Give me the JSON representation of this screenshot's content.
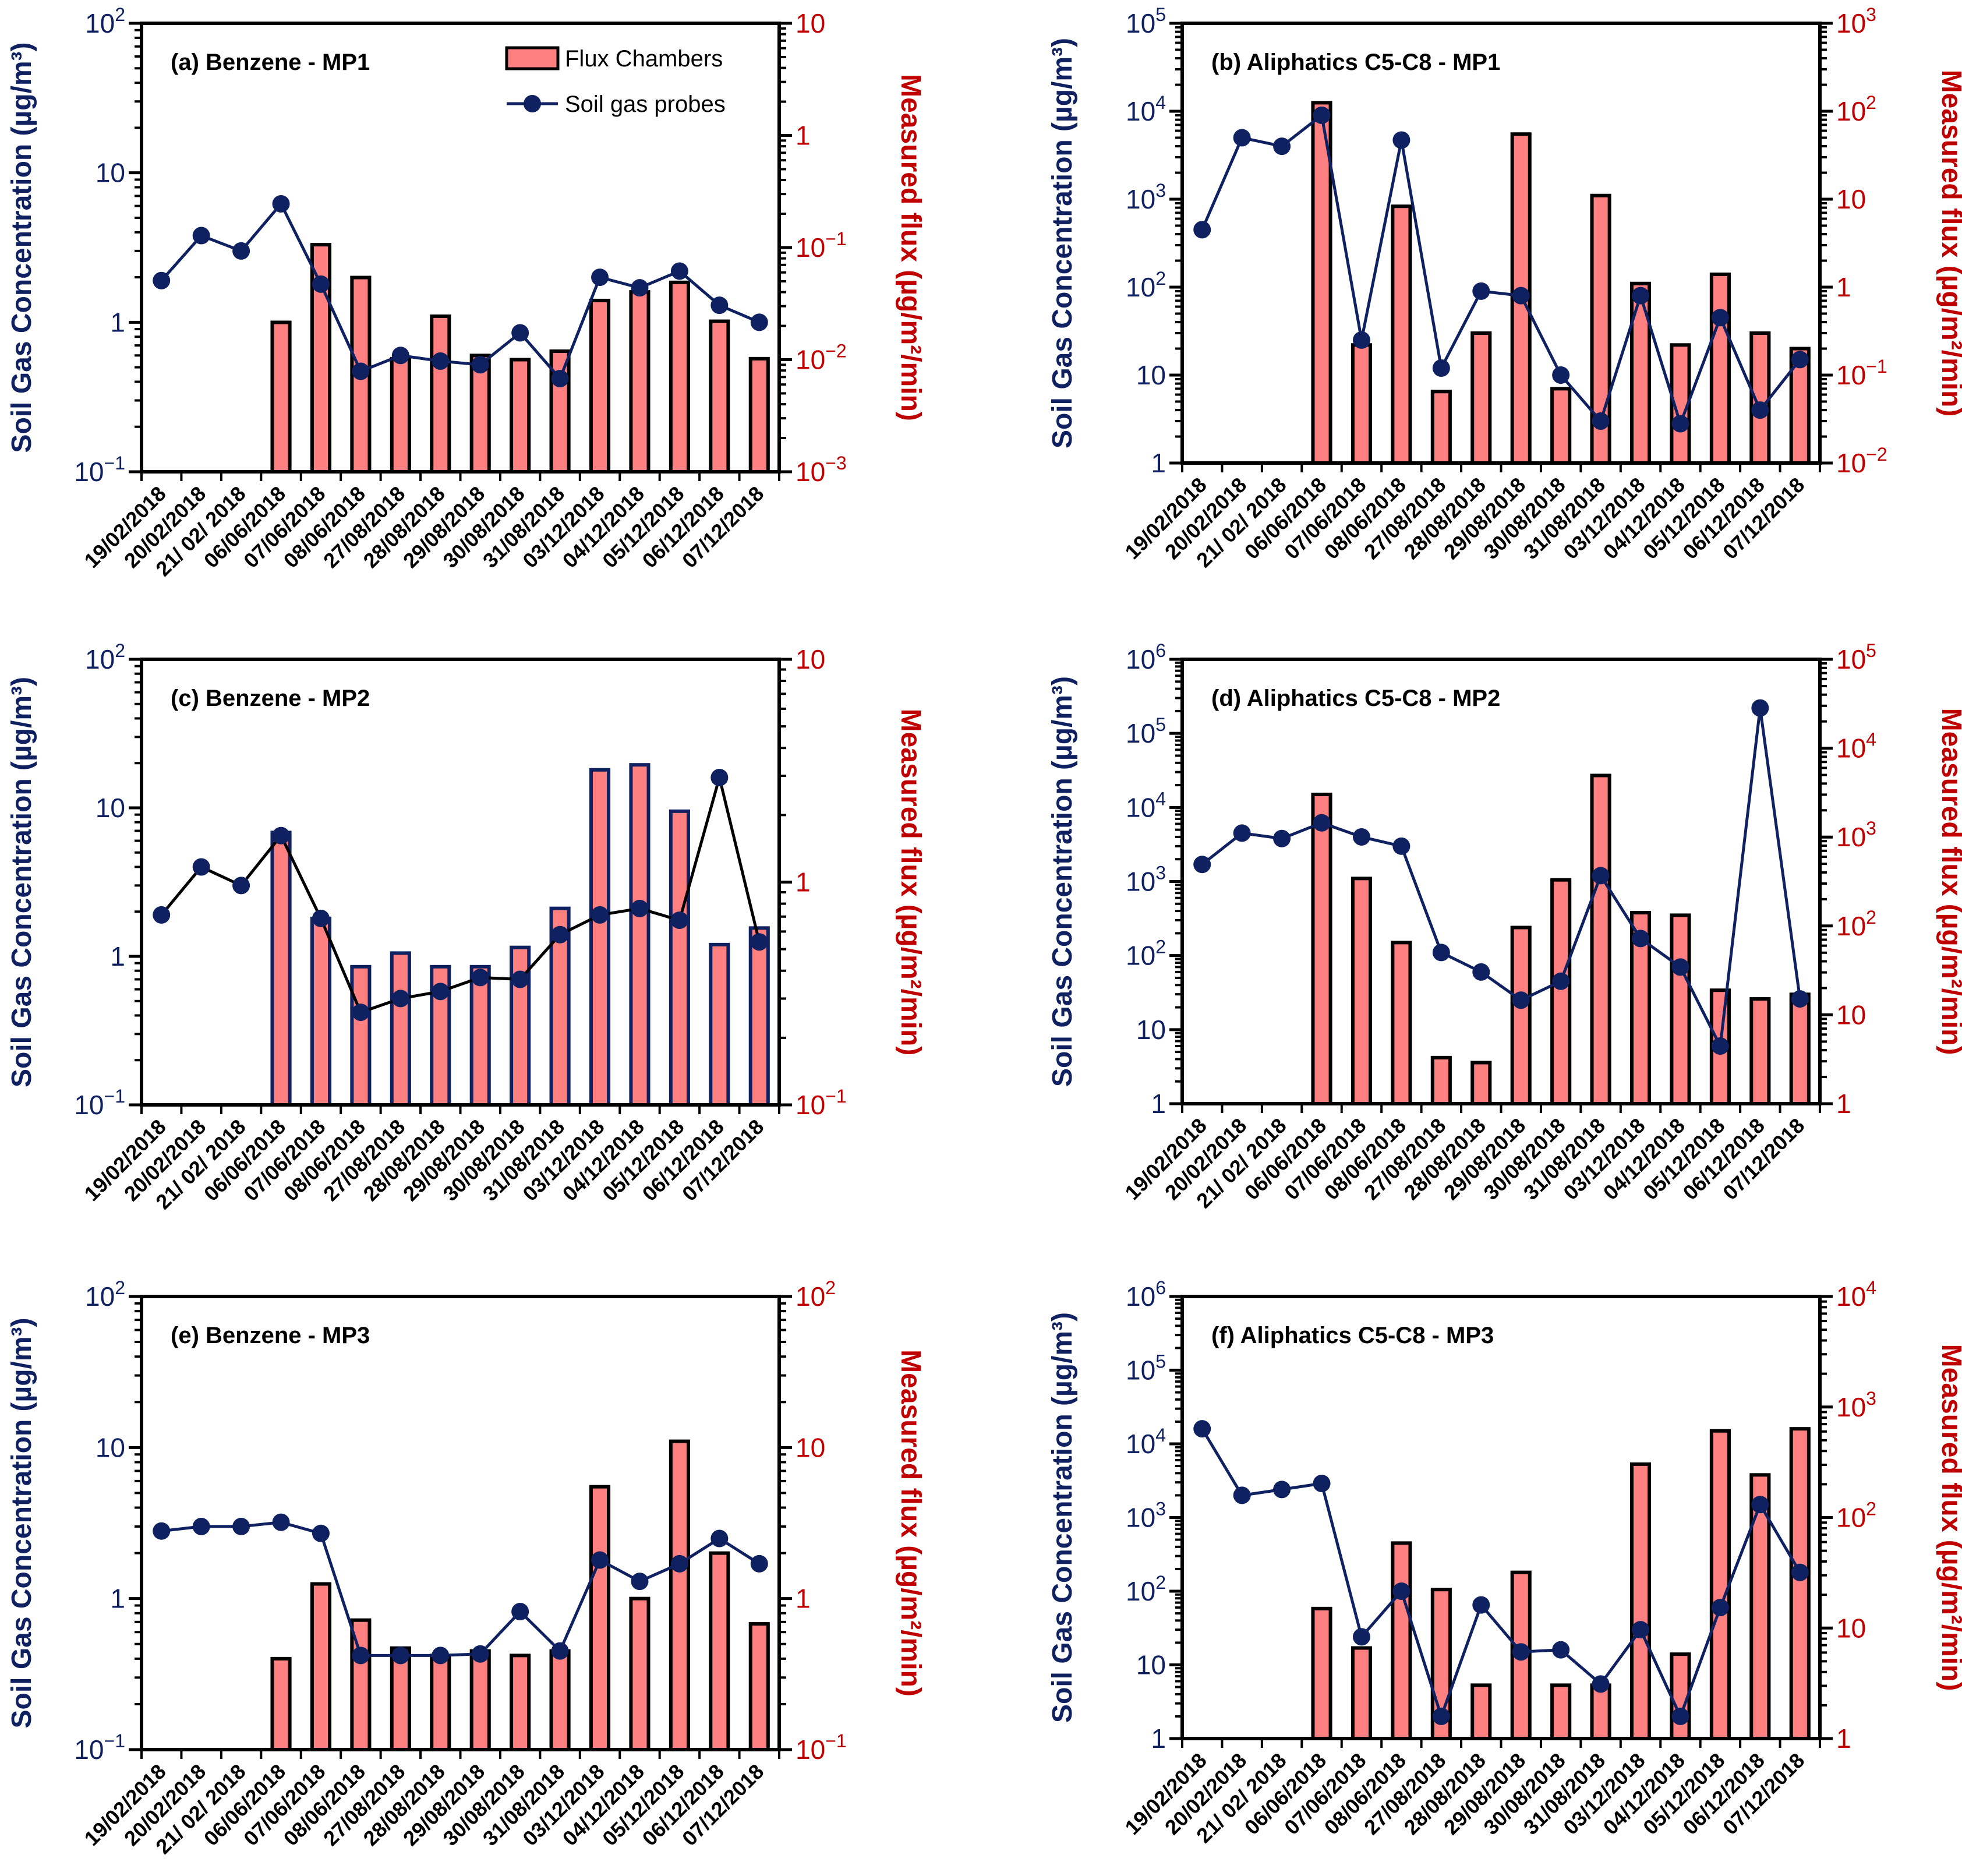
{
  "colors": {
    "navy": "#0f2160",
    "red": "#c00000",
    "bar_fill": "#ff8080",
    "bar_edge": "#000000",
    "line": "#0f2160"
  },
  "legend": {
    "bars": "Flux Chambers",
    "line": "Soil gas probes"
  },
  "chart_data": [
    {
      "type": "bar+line",
      "title": "(a) Benzene - MP1",
      "ylabel": "Soil Gas Concentration (µg/m³)",
      "y2label": "Measured flux (µg/m²/min)",
      "yscale": "log",
      "ylim": [
        0.1,
        100
      ],
      "y2lim": [
        0.001,
        10
      ],
      "yticks": [
        "10^-1",
        "1",
        "10",
        "10^2"
      ],
      "y2ticks": [
        "10^-3",
        "10^-2",
        "10^-1",
        "1",
        "10"
      ],
      "legend": "top-right",
      "categories": [
        "19/02/2018",
        "20/02/2018",
        "21/ 02/ 2018",
        "06/06/2018",
        "07/06/2018",
        "08/06/2018",
        "27/08/2018",
        "28/08/2018",
        "29/08/2018",
        "30/08/2018",
        "31/08/2018",
        "03/12/2018",
        "04/12/2018",
        "05/12/2018",
        "06/12/2018",
        "07/12/2018"
      ],
      "series": [
        {
          "name": "Soil gas probes",
          "axis": "left",
          "kind": "line",
          "values": [
            1.9,
            3.8,
            3.0,
            6.2,
            1.8,
            0.47,
            0.6,
            0.55,
            0.52,
            0.85,
            0.42,
            2.0,
            1.7,
            2.2,
            1.3,
            1.0
          ]
        },
        {
          "name": "Flux Chambers",
          "axis": "right",
          "kind": "bar",
          "values": [
            null,
            null,
            null,
            0.0215,
            0.106,
            0.054,
            0.0102,
            0.0244,
            0.0109,
            0.01,
            0.0119,
            0.0337,
            0.0402,
            0.0489,
            0.022,
            0.0102
          ]
        }
      ]
    },
    {
      "type": "bar+line",
      "title": "(b) Aliphatics C5-C8 - MP1",
      "ylabel": "Soil Gas Concentration (µg/m³)",
      "y2label": "Measured flux (µg/m²/min)",
      "yscale": "log",
      "ylim": [
        1,
        100000
      ],
      "y2lim": [
        0.01,
        1000
      ],
      "yticks": [
        "1",
        "10",
        "10^2",
        "10^3",
        "10^4",
        "10^5"
      ],
      "y2ticks": [
        "10^-2",
        "10^-1",
        "1",
        "10",
        "10^2",
        "10^3"
      ],
      "categories": [
        "19/02/2018",
        "20/02/2018",
        "21/ 02/ 2018",
        "06/06/2018",
        "07/06/2018",
        "08/06/2018",
        "27/08/2018",
        "28/08/2018",
        "29/08/2018",
        "30/08/2018",
        "31/08/2018",
        "03/12/2018",
        "04/12/2018",
        "05/12/2018",
        "06/12/2018",
        "07/12/2018"
      ],
      "series": [
        {
          "name": "Soil gas probes",
          "axis": "left",
          "kind": "line",
          "values": [
            450,
            5000,
            4000,
            9000,
            25,
            4700,
            12,
            90,
            80,
            10,
            3,
            80,
            2.8,
            45,
            4,
            15
          ]
        },
        {
          "name": "Flux Chambers",
          "axis": "right",
          "kind": "bar",
          "values": [
            null,
            null,
            null,
            125,
            0.22,
            8.3,
            0.065,
            0.3,
            55,
            0.07,
            11,
            1.1,
            0.22,
            1.4,
            0.3,
            0.2
          ]
        }
      ]
    },
    {
      "type": "bar+line",
      "title": "(c) Benzene - MP2",
      "ylabel": "Soil Gas Concentration (µg/m³)",
      "y2label": "Measured flux (µg/m²/min)",
      "yscale": "log",
      "ylim": [
        0.1,
        100
      ],
      "y2lim": [
        0.1,
        10
      ],
      "yticks": [
        "10^-1",
        "1",
        "10",
        "10^2"
      ],
      "y2ticks": [
        "10^-1",
        "1",
        "10"
      ],
      "line_color": "#000000",
      "bar_edge": "#0f2160",
      "categories": [
        "19/02/2018",
        "20/02/2018",
        "21/ 02/ 2018",
        "06/06/2018",
        "07/06/2018",
        "08/06/2018",
        "27/08/2018",
        "28/08/2018",
        "29/08/2018",
        "30/08/2018",
        "31/08/2018",
        "03/12/2018",
        "04/12/2018",
        "05/12/2018",
        "06/12/2018",
        "07/12/2018"
      ],
      "series": [
        {
          "name": "Soil gas probes",
          "axis": "left",
          "kind": "line",
          "values": [
            1.9,
            4.0,
            3.0,
            6.5,
            1.8,
            0.42,
            0.52,
            0.58,
            0.72,
            0.7,
            1.4,
            1.9,
            2.1,
            1.75,
            16,
            1.25
          ]
        },
        {
          "name": "Flux Chambers",
          "axis": "right",
          "kind": "bar",
          "values": [
            null,
            null,
            null,
            1.67,
            0.687,
            0.417,
            0.48,
            0.417,
            0.417,
            0.509,
            0.762,
            3.19,
            3.36,
            2.08,
            0.524,
            0.622
          ]
        }
      ]
    },
    {
      "type": "bar+line",
      "title": "(d) Aliphatics C5-C8 - MP2",
      "ylabel": "Soil Gas Concentration (µg/m³)",
      "y2label": "Measured flux (µg/m²/min)",
      "yscale": "log",
      "ylim": [
        1,
        1000000
      ],
      "y2lim": [
        1,
        100000
      ],
      "yticks": [
        "1",
        "10",
        "10^2",
        "10^3",
        "10^4",
        "10^5",
        "10^6"
      ],
      "y2ticks": [
        "1",
        "10",
        "10^2",
        "10^3",
        "10^4",
        "10^5"
      ],
      "categories": [
        "19/02/2018",
        "20/02/2018",
        "21/ 02/ 2018",
        "06/06/2018",
        "07/06/2018",
        "08/06/2018",
        "27/08/2018",
        "28/08/2018",
        "29/08/2018",
        "30/08/2018",
        "31/08/2018",
        "03/12/2018",
        "04/12/2018",
        "05/12/2018",
        "06/12/2018",
        "07/12/2018"
      ],
      "series": [
        {
          "name": "Soil gas probes",
          "axis": "left",
          "kind": "line",
          "values": [
            1700,
            4500,
            3800,
            6200,
            4000,
            3000,
            110,
            60,
            25,
            45,
            1200,
            170,
            70,
            6,
            220000,
            26
          ]
        },
        {
          "name": "Flux Chambers",
          "axis": "right",
          "kind": "bar",
          "values": [
            null,
            null,
            null,
            3020,
            342,
            65,
            3.3,
            2.9,
            96,
            330,
            4930,
            141,
            132,
            18.9,
            15.1,
            17
          ]
        }
      ]
    },
    {
      "type": "bar+line",
      "title": "(e) Benzene - MP3",
      "ylabel": "Soil Gas Concentration (µg/m³)",
      "y2label": "Measured flux (µg/m²/min)",
      "yscale": "log",
      "ylim": [
        0.1,
        100
      ],
      "y2lim": [
        0.1,
        100
      ],
      "yticks": [
        "10^-1",
        "1",
        "10",
        "10^2"
      ],
      "y2ticks": [
        "10^-1",
        "1",
        "10",
        "10^2"
      ],
      "categories": [
        "19/02/2018",
        "20/02/2018",
        "21/ 02/ 2018",
        "06/06/2018",
        "07/06/2018",
        "08/06/2018",
        "27/08/2018",
        "28/08/2018",
        "29/08/2018",
        "30/08/2018",
        "31/08/2018",
        "03/12/2018",
        "04/12/2018",
        "05/12/2018",
        "06/12/2018",
        "07/12/2018"
      ],
      "series": [
        {
          "name": "Soil gas probes",
          "axis": "left",
          "kind": "line",
          "values": [
            2.8,
            3.0,
            3.0,
            3.2,
            2.7,
            0.42,
            0.42,
            0.42,
            0.43,
            0.82,
            0.45,
            1.8,
            1.3,
            1.7,
            2.5,
            1.7
          ]
        },
        {
          "name": "Flux Chambers",
          "axis": "right",
          "kind": "bar",
          "values": [
            null,
            null,
            null,
            0.4,
            1.25,
            0.72,
            0.47,
            0.42,
            0.45,
            0.42,
            0.45,
            5.5,
            1.0,
            11,
            2.0,
            0.68
          ]
        }
      ]
    },
    {
      "type": "bar+line",
      "title": "(f) Aliphatics C5-C8 - MP3",
      "ylabel": "Soil Gas Concentration (µg/m³)",
      "y2label": "Measured flux (µg/m²/min)",
      "yscale": "log",
      "ylim": [
        1,
        1000000
      ],
      "y2lim": [
        1,
        10000
      ],
      "yticks": [
        "1",
        "10",
        "10^2",
        "10^3",
        "10^4",
        "10^5",
        "10^6"
      ],
      "y2ticks": [
        "1",
        "10",
        "10^2",
        "10^3",
        "10^4"
      ],
      "categories": [
        "19/02/2018",
        "20/02/2018",
        "21/ 02/ 2018",
        "06/06/2018",
        "07/06/2018",
        "08/06/2018",
        "27/08/2018",
        "28/08/2018",
        "29/08/2018",
        "30/08/2018",
        "31/08/2018",
        "03/12/2018",
        "04/12/2018",
        "05/12/2018",
        "06/12/2018",
        "07/12/2018"
      ],
      "series": [
        {
          "name": "Soil gas probes",
          "axis": "left",
          "kind": "line",
          "values": [
            16000,
            2000,
            2400,
            2900,
            24,
            100,
            2,
            65,
            15,
            16,
            5.5,
            30,
            2,
            60,
            1500,
            180
          ]
        },
        {
          "name": "Flux Chambers",
          "axis": "right",
          "kind": "bar",
          "values": [
            null,
            null,
            null,
            15.0,
            6.6,
            58.7,
            22.3,
            3.04,
            31.9,
            3.04,
            3.04,
            304,
            5.8,
            608,
            243,
            635
          ]
        }
      ]
    }
  ]
}
